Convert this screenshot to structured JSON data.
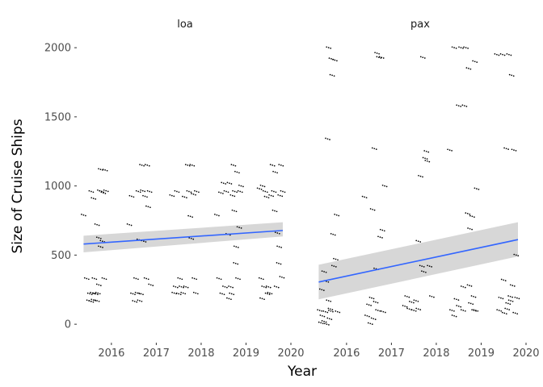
{
  "chart_data": {
    "type": "scatter",
    "facet_wrap": "variable",
    "xlabel": "Year",
    "ylabel": "Size of Cruise Ships",
    "xlim": [
      2015.3,
      2020.0
    ],
    "ylim": [
      -110,
      2100
    ],
    "x_ticks": [
      2016,
      2017,
      2018,
      2019,
      2020
    ],
    "y_ticks": [
      0,
      500,
      1000,
      1500,
      2000
    ],
    "grid": false,
    "background": "#ffffff",
    "colors": {
      "point": "#000000",
      "fit_line": "#3366ff",
      "ribbon": "#d3d3d3"
    },
    "panels": [
      {
        "label": "loa",
        "trend": {
          "x": [
            2015.38,
            2019.82
          ],
          "y": [
            580,
            678
          ],
          "ci_lower": [
            520,
            635
          ],
          "ci_upper": [
            640,
            738
          ]
        },
        "points": [
          {
            "x": 2015.38,
            "y": 790
          },
          {
            "x": 2015.45,
            "y": 330
          },
          {
            "x": 2015.5,
            "y": 170
          },
          {
            "x": 2015.52,
            "y": 220
          },
          {
            "x": 2015.55,
            "y": 165
          },
          {
            "x": 2015.58,
            "y": 225
          },
          {
            "x": 2015.6,
            "y": 175
          },
          {
            "x": 2015.62,
            "y": 330
          },
          {
            "x": 2015.65,
            "y": 220
          },
          {
            "x": 2015.68,
            "y": 170
          },
          {
            "x": 2015.7,
            "y": 225
          },
          {
            "x": 2015.72,
            "y": 285
          },
          {
            "x": 2015.74,
            "y": 965
          },
          {
            "x": 2015.76,
            "y": 1120
          },
          {
            "x": 2015.78,
            "y": 960
          },
          {
            "x": 2015.8,
            "y": 600
          },
          {
            "x": 2015.82,
            "y": 950
          },
          {
            "x": 2015.84,
            "y": 330
          },
          {
            "x": 2015.86,
            "y": 1115
          },
          {
            "x": 2015.88,
            "y": 965
          },
          {
            "x": 2015.72,
            "y": 625
          },
          {
            "x": 2015.76,
            "y": 560
          },
          {
            "x": 2015.68,
            "y": 720
          },
          {
            "x": 2015.55,
            "y": 960
          },
          {
            "x": 2015.6,
            "y": 910
          },
          {
            "x": 2016.4,
            "y": 720
          },
          {
            "x": 2016.45,
            "y": 925
          },
          {
            "x": 2016.48,
            "y": 220
          },
          {
            "x": 2016.52,
            "y": 165
          },
          {
            "x": 2016.55,
            "y": 330
          },
          {
            "x": 2016.58,
            "y": 225
          },
          {
            "x": 2016.6,
            "y": 960
          },
          {
            "x": 2016.63,
            "y": 170
          },
          {
            "x": 2016.66,
            "y": 220
          },
          {
            "x": 2016.68,
            "y": 1150
          },
          {
            "x": 2016.7,
            "y": 965
          },
          {
            "x": 2016.72,
            "y": 600
          },
          {
            "x": 2016.75,
            "y": 925
          },
          {
            "x": 2016.78,
            "y": 330
          },
          {
            "x": 2016.8,
            "y": 1150
          },
          {
            "x": 2016.82,
            "y": 850
          },
          {
            "x": 2016.85,
            "y": 960
          },
          {
            "x": 2016.88,
            "y": 285
          },
          {
            "x": 2016.62,
            "y": 610
          },
          {
            "x": 2017.35,
            "y": 930
          },
          {
            "x": 2017.4,
            "y": 225
          },
          {
            "x": 2017.43,
            "y": 270
          },
          {
            "x": 2017.46,
            "y": 960
          },
          {
            "x": 2017.5,
            "y": 220
          },
          {
            "x": 2017.53,
            "y": 330
          },
          {
            "x": 2017.56,
            "y": 270
          },
          {
            "x": 2017.6,
            "y": 225
          },
          {
            "x": 2017.63,
            "y": 920
          },
          {
            "x": 2017.66,
            "y": 270
          },
          {
            "x": 2017.7,
            "y": 1150
          },
          {
            "x": 2017.73,
            "y": 960
          },
          {
            "x": 2017.76,
            "y": 780
          },
          {
            "x": 2017.78,
            "y": 620
          },
          {
            "x": 2017.8,
            "y": 1150
          },
          {
            "x": 2017.83,
            "y": 940
          },
          {
            "x": 2017.85,
            "y": 330
          },
          {
            "x": 2017.88,
            "y": 225
          },
          {
            "x": 2017.9,
            "y": 960
          },
          {
            "x": 2018.35,
            "y": 790
          },
          {
            "x": 2018.4,
            "y": 330
          },
          {
            "x": 2018.44,
            "y": 950
          },
          {
            "x": 2018.47,
            "y": 220
          },
          {
            "x": 2018.5,
            "y": 1020
          },
          {
            "x": 2018.53,
            "y": 270
          },
          {
            "x": 2018.56,
            "y": 960
          },
          {
            "x": 2018.6,
            "y": 650
          },
          {
            "x": 2018.63,
            "y": 1020
          },
          {
            "x": 2018.66,
            "y": 270
          },
          {
            "x": 2018.7,
            "y": 930
          },
          {
            "x": 2018.72,
            "y": 1150
          },
          {
            "x": 2018.75,
            "y": 960
          },
          {
            "x": 2018.77,
            "y": 440
          },
          {
            "x": 2018.8,
            "y": 1100
          },
          {
            "x": 2018.82,
            "y": 330
          },
          {
            "x": 2018.85,
            "y": 700
          },
          {
            "x": 2018.87,
            "y": 960
          },
          {
            "x": 2018.89,
            "y": 1000
          },
          {
            "x": 2018.62,
            "y": 185
          },
          {
            "x": 2018.68,
            "y": 220
          },
          {
            "x": 2018.74,
            "y": 820
          },
          {
            "x": 2018.78,
            "y": 560
          },
          {
            "x": 2019.3,
            "y": 980
          },
          {
            "x": 2019.34,
            "y": 330
          },
          {
            "x": 2019.37,
            "y": 1000
          },
          {
            "x": 2019.4,
            "y": 270
          },
          {
            "x": 2019.43,
            "y": 960
          },
          {
            "x": 2019.46,
            "y": 920
          },
          {
            "x": 2019.5,
            "y": 270
          },
          {
            "x": 2019.53,
            "y": 225
          },
          {
            "x": 2019.56,
            "y": 930
          },
          {
            "x": 2019.59,
            "y": 1150
          },
          {
            "x": 2019.62,
            "y": 960
          },
          {
            "x": 2019.65,
            "y": 1100
          },
          {
            "x": 2019.68,
            "y": 270
          },
          {
            "x": 2019.7,
            "y": 660
          },
          {
            "x": 2019.73,
            "y": 440
          },
          {
            "x": 2019.76,
            "y": 930
          },
          {
            "x": 2019.78,
            "y": 1150
          },
          {
            "x": 2019.8,
            "y": 340
          },
          {
            "x": 2019.36,
            "y": 185
          },
          {
            "x": 2019.48,
            "y": 220
          },
          {
            "x": 2019.64,
            "y": 820
          },
          {
            "x": 2019.74,
            "y": 560
          },
          {
            "x": 2019.82,
            "y": 960
          }
        ]
      },
      {
        "label": "pax",
        "trend": {
          "x": [
            2015.38,
            2019.82
          ],
          "y": [
            305,
            612
          ],
          "ci_lower": [
            180,
            490
          ],
          "ci_upper": [
            430,
            738
          ]
        },
        "points": [
          {
            "x": 2015.4,
            "y": 100
          },
          {
            "x": 2015.43,
            "y": 10
          },
          {
            "x": 2015.46,
            "y": 60
          },
          {
            "x": 2015.5,
            "y": 20
          },
          {
            "x": 2015.53,
            "y": 90
          },
          {
            "x": 2015.56,
            "y": 0
          },
          {
            "x": 2015.58,
            "y": 1340
          },
          {
            "x": 2015.6,
            "y": 2000
          },
          {
            "x": 2015.62,
            "y": 40
          },
          {
            "x": 2015.64,
            "y": 110
          },
          {
            "x": 2015.66,
            "y": 1920
          },
          {
            "x": 2015.68,
            "y": 1800
          },
          {
            "x": 2015.7,
            "y": 650
          },
          {
            "x": 2015.72,
            "y": 420
          },
          {
            "x": 2015.74,
            "y": 1910
          },
          {
            "x": 2015.76,
            "y": 470
          },
          {
            "x": 2015.78,
            "y": 790
          },
          {
            "x": 2015.8,
            "y": 90
          },
          {
            "x": 2015.5,
            "y": 380
          },
          {
            "x": 2015.6,
            "y": 170
          },
          {
            "x": 2015.45,
            "y": 250
          },
          {
            "x": 2015.55,
            "y": 310
          },
          {
            "x": 2015.65,
            "y": 95
          },
          {
            "x": 2016.4,
            "y": 920
          },
          {
            "x": 2016.46,
            "y": 60
          },
          {
            "x": 2016.5,
            "y": 140
          },
          {
            "x": 2016.53,
            "y": 5
          },
          {
            "x": 2016.56,
            "y": 190
          },
          {
            "x": 2016.6,
            "y": 40
          },
          {
            "x": 2016.62,
            "y": 1270
          },
          {
            "x": 2016.65,
            "y": 160
          },
          {
            "x": 2016.68,
            "y": 1960
          },
          {
            "x": 2016.7,
            "y": 100
          },
          {
            "x": 2016.72,
            "y": 1930
          },
          {
            "x": 2016.75,
            "y": 630
          },
          {
            "x": 2016.78,
            "y": 1930
          },
          {
            "x": 2016.8,
            "y": 680
          },
          {
            "x": 2016.82,
            "y": 90
          },
          {
            "x": 2016.85,
            "y": 1000
          },
          {
            "x": 2016.58,
            "y": 830
          },
          {
            "x": 2016.66,
            "y": 400
          },
          {
            "x": 2017.35,
            "y": 200
          },
          {
            "x": 2017.4,
            "y": 110
          },
          {
            "x": 2017.45,
            "y": 160
          },
          {
            "x": 2017.5,
            "y": 100
          },
          {
            "x": 2017.55,
            "y": 170
          },
          {
            "x": 2017.6,
            "y": 110
          },
          {
            "x": 2017.65,
            "y": 1070
          },
          {
            "x": 2017.7,
            "y": 1930
          },
          {
            "x": 2017.72,
            "y": 380
          },
          {
            "x": 2017.75,
            "y": 1200
          },
          {
            "x": 2017.78,
            "y": 1250
          },
          {
            "x": 2017.8,
            "y": 1180
          },
          {
            "x": 2017.85,
            "y": 420
          },
          {
            "x": 2017.9,
            "y": 200
          },
          {
            "x": 2017.6,
            "y": 600
          },
          {
            "x": 2017.68,
            "y": 420
          },
          {
            "x": 2017.3,
            "y": 130
          },
          {
            "x": 2018.3,
            "y": 1260
          },
          {
            "x": 2018.35,
            "y": 100
          },
          {
            "x": 2018.4,
            "y": 2000
          },
          {
            "x": 2018.45,
            "y": 180
          },
          {
            "x": 2018.5,
            "y": 1580
          },
          {
            "x": 2018.55,
            "y": 2000
          },
          {
            "x": 2018.6,
            "y": 100
          },
          {
            "x": 2018.63,
            "y": 1580
          },
          {
            "x": 2018.66,
            "y": 2000
          },
          {
            "x": 2018.7,
            "y": 800
          },
          {
            "x": 2018.72,
            "y": 1850
          },
          {
            "x": 2018.75,
            "y": 690
          },
          {
            "x": 2018.77,
            "y": 150
          },
          {
            "x": 2018.8,
            "y": 780
          },
          {
            "x": 2018.83,
            "y": 200
          },
          {
            "x": 2018.86,
            "y": 1900
          },
          {
            "x": 2018.88,
            "y": 100
          },
          {
            "x": 2018.9,
            "y": 980
          },
          {
            "x": 2018.4,
            "y": 60
          },
          {
            "x": 2018.5,
            "y": 130
          },
          {
            "x": 2018.6,
            "y": 270
          },
          {
            "x": 2018.74,
            "y": 280
          },
          {
            "x": 2018.84,
            "y": 100
          },
          {
            "x": 2019.35,
            "y": 1950
          },
          {
            "x": 2019.4,
            "y": 100
          },
          {
            "x": 2019.44,
            "y": 190
          },
          {
            "x": 2019.48,
            "y": 1950
          },
          {
            "x": 2019.52,
            "y": 80
          },
          {
            "x": 2019.56,
            "y": 1270
          },
          {
            "x": 2019.6,
            "y": 150
          },
          {
            "x": 2019.62,
            "y": 1950
          },
          {
            "x": 2019.65,
            "y": 200
          },
          {
            "x": 2019.68,
            "y": 1800
          },
          {
            "x": 2019.7,
            "y": 280
          },
          {
            "x": 2019.73,
            "y": 1260
          },
          {
            "x": 2019.76,
            "y": 80
          },
          {
            "x": 2019.78,
            "y": 500
          },
          {
            "x": 2019.8,
            "y": 190
          },
          {
            "x": 2019.5,
            "y": 320
          },
          {
            "x": 2019.58,
            "y": 110
          },
          {
            "x": 2019.66,
            "y": 170
          }
        ]
      }
    ]
  }
}
